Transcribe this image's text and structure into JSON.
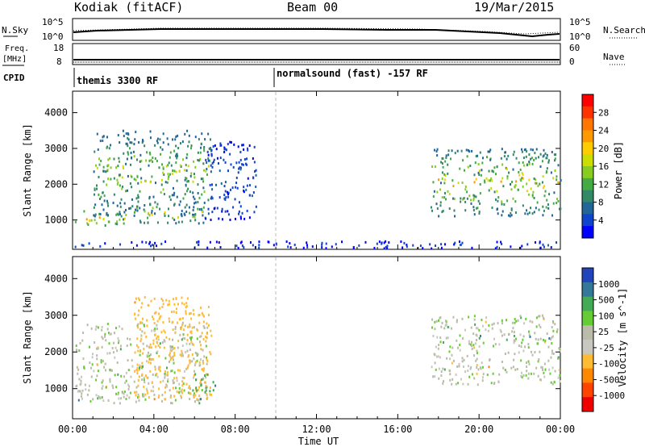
{
  "header": {
    "title": "Kodiak (fitACF)",
    "beam": "Beam 00",
    "date": "19/Mar/2015"
  },
  "strip_sky": {
    "label_left": "N.Sky",
    "label_right": "N.Search",
    "ticks_left": [
      "10^5",
      "10^0"
    ],
    "ticks_right": [
      "10^5",
      "10^0"
    ]
  },
  "strip_freq": {
    "label_left_1": "Freq.",
    "label_left_2": "[MHz]",
    "label_right": "Nave",
    "ticks_left": [
      "18",
      "8"
    ],
    "ticks_right": [
      "60",
      "0"
    ]
  },
  "cpid": {
    "label": "CPID",
    "mode_1": "themis 3300 RF",
    "mode_2": "normalsound (fast) -157 RF"
  },
  "power_panel": {
    "ylabel": "Slant Range [km]",
    "cbar_label": "Power [dB]",
    "cbar_ticks": [
      "28",
      "24",
      "20",
      "16",
      "12",
      "8",
      "4"
    ],
    "cbar_colors": [
      "#ff0000",
      "#ff3300",
      "#ff7700",
      "#ff9900",
      "#ffcc00",
      "#ccdd00",
      "#88cc22",
      "#44aa44",
      "#338866",
      "#226699",
      "#1144cc",
      "#0000ff"
    ]
  },
  "velocity_panel": {
    "ylabel": "Slant Range [km]",
    "cbar_label": "Velocity [m s^-1]",
    "cbar_ticks": [
      "1000",
      "500",
      "100",
      "25",
      "-25",
      "-100",
      "-500",
      "-1000"
    ],
    "cbar_colors": [
      "#2244bb",
      "#337799",
      "#44aa55",
      "#66cc33",
      "#bbbbaa",
      "#c8c8c0",
      "#ffbb33",
      "#ff8800",
      "#ff4400",
      "#ee0000"
    ]
  },
  "xaxis": {
    "label": "Time UT",
    "ticks": [
      "00:00",
      "04:00",
      "08:00",
      "12:00",
      "16:00",
      "20:00",
      "00:00"
    ]
  },
  "chart_data": [
    {
      "type": "heatmap",
      "name": "power",
      "xlabel": "Time UT",
      "ylabel": "Slant Range [km]",
      "xlim": [
        0,
        24
      ],
      "ylim": [
        180,
        4600
      ],
      "yticks": [
        1000,
        2000,
        3000,
        4000
      ],
      "colorbar": {
        "label": "Power [dB]",
        "range": [
          0,
          32
        ],
        "ticks": [
          4,
          8,
          12,
          16,
          20,
          24,
          28
        ]
      },
      "echo_bands": [
        {
          "t_start": 0.1,
          "t_end": 2.6,
          "r_start": 800,
          "r_end": 1300,
          "peak_db": 26
        },
        {
          "t_start": 1.0,
          "t_end": 6.8,
          "r_start": 1100,
          "r_end": 3500,
          "peak_db": 20
        },
        {
          "t_start": 3.0,
          "t_end": 6.6,
          "r_start": 900,
          "r_end": 1500,
          "peak_db": 24
        },
        {
          "t_start": 6.5,
          "t_end": 9.0,
          "r_start": 1000,
          "r_end": 3200,
          "peak_db": 8
        },
        {
          "t_start": 17.6,
          "t_end": 24.0,
          "r_start": 1100,
          "r_end": 3000,
          "peak_db": 24
        },
        {
          "t_start": 0.0,
          "t_end": 24.0,
          "r_start": 200,
          "r_end": 400,
          "peak_db": 6
        }
      ]
    },
    {
      "type": "heatmap",
      "name": "velocity",
      "xlabel": "Time UT",
      "ylabel": "Slant Range [km]",
      "xlim": [
        0,
        24
      ],
      "ylim": [
        180,
        4600
      ],
      "yticks": [
        1000,
        2000,
        3000,
        4000
      ],
      "colorbar": {
        "label": "Velocity [m s^-1]",
        "ticks": [
          1000,
          500,
          100,
          25,
          -25,
          -100,
          -500,
          -1000
        ]
      },
      "echo_bands": [
        {
          "t_start": 0.1,
          "t_end": 6.6,
          "r_start": 600,
          "r_end": 2800,
          "dominant_velocity": 0
        },
        {
          "t_start": 3.0,
          "t_end": 6.8,
          "r_start": 700,
          "r_end": 3500,
          "dominant_velocity": -200
        },
        {
          "t_start": 5.8,
          "t_end": 7.2,
          "r_start": 900,
          "r_end": 1400,
          "dominant_velocity": 300
        },
        {
          "t_start": 17.6,
          "t_end": 24.0,
          "r_start": 1100,
          "r_end": 3000,
          "dominant_velocity": 0
        }
      ]
    }
  ]
}
